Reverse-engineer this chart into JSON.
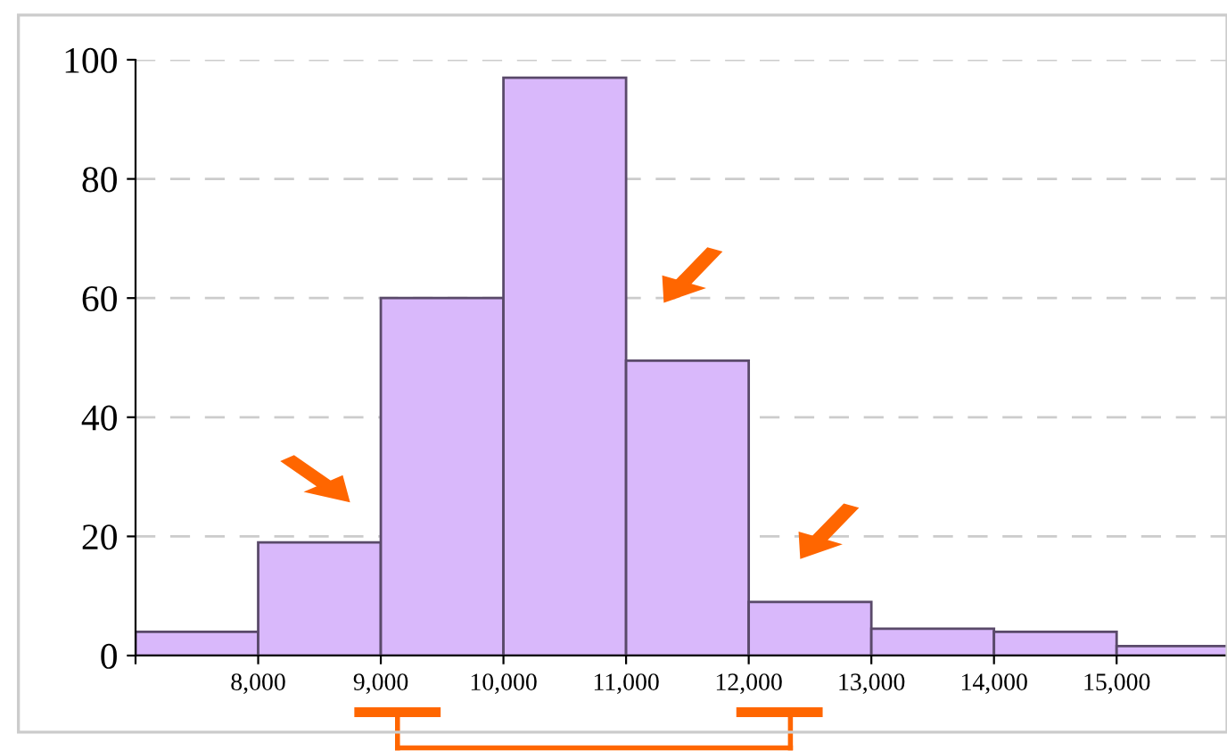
{
  "chart_data": {
    "type": "histogram",
    "bins": [
      7000,
      8000,
      9000,
      10000,
      11000,
      12000,
      13000,
      14000,
      15000,
      16000
    ],
    "values": [
      4,
      19,
      60,
      97,
      49.5,
      9,
      4.5,
      4,
      1.6
    ],
    "color": "#d9b8fb",
    "xlim": [
      7000,
      15900
    ],
    "ylim": [
      0,
      100
    ],
    "xticks": [
      {
        "value": 7000,
        "label": null
      },
      {
        "value": 8000,
        "label": "8,000"
      },
      {
        "value": 9000,
        "label": "9,000"
      },
      {
        "value": 10000,
        "label": "10,000"
      },
      {
        "value": 11000,
        "label": "11,000"
      },
      {
        "value": 12000,
        "label": "12,000"
      },
      {
        "value": 13000,
        "label": "13,000"
      },
      {
        "value": 14000,
        "label": "14,000"
      },
      {
        "value": 15000,
        "label": "15,000"
      }
    ],
    "yticks": [
      0,
      20,
      40,
      60,
      80,
      100
    ],
    "grid": "y"
  }
}
